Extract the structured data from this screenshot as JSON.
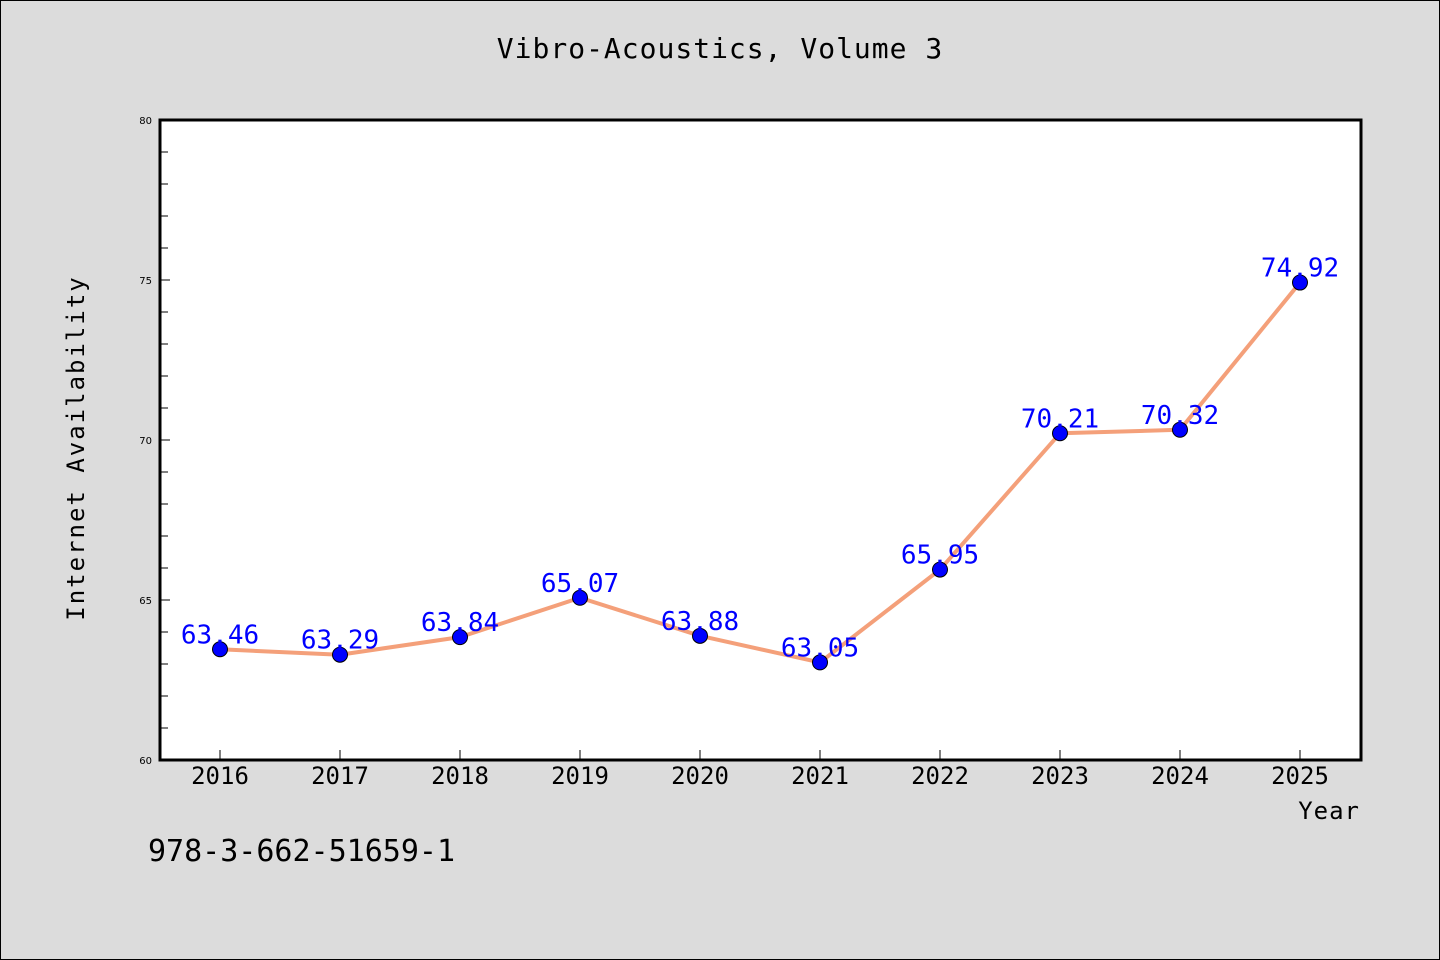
{
  "chart_data": {
    "type": "line",
    "title": "Vibro-Acoustics, Volume 3",
    "xlabel": "Year",
    "ylabel": "Internet Availability",
    "categories": [
      "2016",
      "2017",
      "2018",
      "2019",
      "2020",
      "2021",
      "2022",
      "2023",
      "2024",
      "2025"
    ],
    "series": [
      {
        "values": [
          63.46,
          63.29,
          63.84,
          65.07,
          63.88,
          63.05,
          65.95,
          70.21,
          70.32,
          74.92
        ],
        "labels": [
          "63.46",
          "63.29",
          "63.84",
          "65.07",
          "63.88",
          "63.05",
          "65.95",
          "70.21",
          "70.32",
          "74.92"
        ],
        "line_color": "#f4a07a",
        "marker_color": "#0000ff"
      }
    ],
    "ylim": [
      60,
      80
    ],
    "yticks": [
      60,
      65,
      70,
      75,
      80
    ],
    "grid": false,
    "label_color": "#0000ff"
  },
  "annotation": "978-3-662-51659-1"
}
